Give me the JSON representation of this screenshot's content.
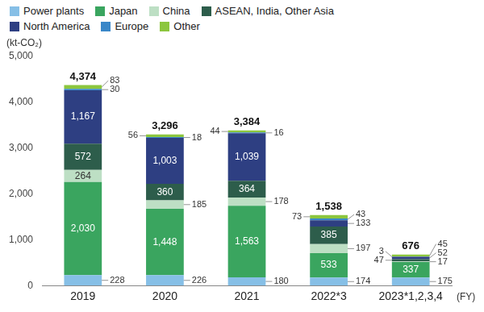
{
  "chart_data": {
    "type": "bar",
    "stacked": true,
    "y_label": "(kt-CO₂)",
    "x_label": "(FY)",
    "categories": [
      "2019",
      "2020",
      "2021",
      "2022*3",
      "2023*1,2,3,4"
    ],
    "series": [
      {
        "name": "Power plants",
        "color": "#86bfe6",
        "values": [
          228,
          226,
          180,
          174,
          175
        ]
      },
      {
        "name": "Japan",
        "color": "#3aa55f",
        "values": [
          2030,
          1448,
          1563,
          533,
          337
        ],
        "value_labels": [
          "2,030",
          "1,448",
          "1,563",
          "533",
          "337"
        ]
      },
      {
        "name": "China",
        "color": "#bddfc4",
        "values": [
          264,
          185,
          178,
          197,
          17
        ]
      },
      {
        "name": "ASEAN, India, Other Asia",
        "color": "#2d5d4b",
        "values": [
          572,
          360,
          364,
          385,
          47
        ]
      },
      {
        "name": "North America",
        "color": "#2e3f82",
        "values": [
          1167,
          1003,
          1039,
          133,
          52
        ],
        "value_labels": [
          "1,167",
          "1,003",
          "1,039",
          "133",
          "52"
        ]
      },
      {
        "name": "Europe",
        "color": "#3a87c8",
        "values": [
          30,
          18,
          16,
          43,
          3
        ]
      },
      {
        "name": "Other",
        "color": "#8cc63e",
        "values": [
          83,
          56,
          44,
          73,
          45
        ]
      }
    ],
    "total_values": [
      4374,
      3296,
      3384,
      1538,
      676
    ],
    "total_labels": [
      "4,374",
      "3,296",
      "3,384",
      "1,538",
      "676"
    ],
    "ylim": [
      0,
      5000
    ],
    "yticks": [
      0,
      {
        "value": 1000,
        "label": "1,000"
      },
      {
        "value": 2000,
        "label": "2,000"
      },
      {
        "value": 3000,
        "label": "3,000"
      },
      {
        "value": 4000,
        "label": "4,000"
      },
      {
        "value": 5000,
        "label": "5,000"
      }
    ],
    "grid": false,
    "legend": "top",
    "data_labels": true
  }
}
